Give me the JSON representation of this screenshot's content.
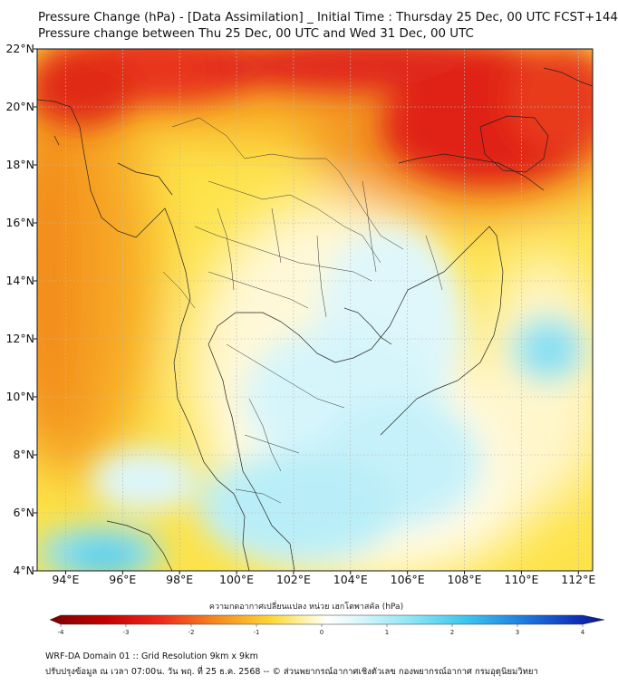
{
  "header": {
    "title_line1": "Pressure Change (hPa) - [Data Assimilation] _ Initial Time : Thursday 25 Dec, 00 UTC FCST+144",
    "title_line2": "Pressure change between Thu 25 Dec, 00 UTC and Wed 31 Dec, 00 UTC"
  },
  "map": {
    "lat_labels": [
      "22°N",
      "20°N",
      "18°N",
      "16°N",
      "14°N",
      "12°N",
      "10°N",
      "8°N",
      "6°N",
      "4°N"
    ],
    "lon_labels": [
      "94°E",
      "96°E",
      "98°E",
      "100°E",
      "102°E",
      "104°E",
      "106°E",
      "108°E",
      "110°E",
      "112°E"
    ],
    "lat_range": [
      4,
      22
    ],
    "lon_range": [
      93,
      112.5
    ],
    "colors": {
      "strong_rise_red": "#e41a1c",
      "rise_orange": "#f7931e",
      "rise_yellow": "#fde34a",
      "neutral": "#fffbe0",
      "fall_cyan_light": "#d8f6fb",
      "fall_cyan": "#6fdcf0",
      "fall_blue": "#2ab8e8"
    }
  },
  "colorbar": {
    "title": "ความกดอากาศเปลี่ยนแปลง หน่วย เฮกโตพาสคัล (hPa)",
    "ticks": [
      "-4",
      "-3",
      "-2",
      "-1",
      "0",
      "1",
      "2",
      "3",
      "4"
    ],
    "range": [
      -4,
      4
    ]
  },
  "footer": {
    "line1": "WRF-DA Domain 01 :: Grid Resolution 9km x 9km",
    "line2": "ปรับปรุงข้อมูล ณ เวลา 07:00น. วัน พฤ. ที่ 25 ธ.ค. 2568 -- © ส่วนพยากรณ์อากาศเชิงตัวเลข กองพยากรณ์อากาศ กรมอุตุนิยมวิทยา"
  }
}
